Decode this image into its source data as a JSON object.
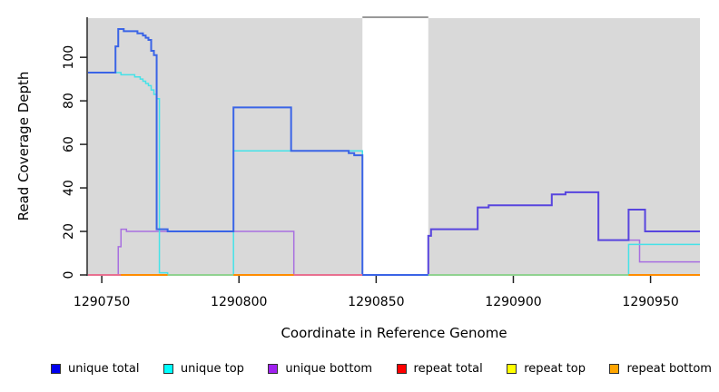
{
  "chart_data": {
    "type": "line",
    "step": true,
    "title": "",
    "xlabel": "Coordinate in Reference Genome",
    "ylabel": "Read Coverage Depth",
    "xlim": [
      1290745,
      1290968
    ],
    "ylim": [
      0,
      118
    ],
    "xticks": [
      1290750,
      1290800,
      1290850,
      1290900,
      1290950
    ],
    "yticks": [
      0,
      20,
      40,
      60,
      80,
      100
    ],
    "grid": false,
    "plot_background": "#D9D9D9",
    "gap_region": {
      "x0": 1290845,
      "x1": 1290869,
      "fill": "#FFFFFF",
      "top_border": "#999999"
    },
    "series": [
      {
        "name": "repeat total",
        "color": "#DD2233",
        "width": 1.2,
        "points": [
          [
            1290745,
            0
          ]
        ]
      },
      {
        "name": "repeat top",
        "color": "#F5E800",
        "width": 1.2,
        "points": [
          [
            1290745,
            0
          ]
        ]
      },
      {
        "name": "repeat bottom",
        "color": "#FF8C00",
        "width": 2,
        "points": [
          [
            1290745,
            0
          ]
        ]
      },
      {
        "name": "unique bottom",
        "color": "#A86FE0",
        "width": 1.5,
        "points": [
          [
            1290745,
            0
          ],
          [
            1290756,
            13
          ],
          [
            1290757,
            21
          ],
          [
            1290759,
            20
          ],
          [
            1290820,
            0
          ],
          [
            1290869,
            18
          ],
          [
            1290870,
            21
          ],
          [
            1290887,
            31
          ],
          [
            1290891,
            32
          ],
          [
            1290914,
            37
          ],
          [
            1290919,
            38
          ],
          [
            1290931,
            16
          ],
          [
            1290946,
            6
          ]
        ]
      },
      {
        "name": "unique top",
        "color": "#45E2E8",
        "width": 1.5,
        "points": [
          [
            1290745,
            93
          ],
          [
            1290757,
            92
          ],
          [
            1290762,
            91
          ],
          [
            1290764,
            90
          ],
          [
            1290765,
            89
          ],
          [
            1290766,
            88
          ],
          [
            1290767,
            87
          ],
          [
            1290768,
            85
          ],
          [
            1290769,
            83
          ],
          [
            1290770,
            81
          ],
          [
            1290771,
            1
          ],
          [
            1290774,
            0
          ],
          [
            1290798,
            57
          ],
          [
            1290845,
            0
          ],
          [
            1290942,
            14
          ]
        ]
      },
      {
        "name": "unique total (pre-gap)",
        "color": "#3A64E6",
        "width": 2,
        "end": 1290869,
        "points": [
          [
            1290745,
            93
          ],
          [
            1290755,
            105
          ],
          [
            1290756,
            113
          ],
          [
            1290758,
            112
          ],
          [
            1290763,
            111
          ],
          [
            1290765,
            110
          ],
          [
            1290766,
            109
          ],
          [
            1290767,
            108
          ],
          [
            1290768,
            103
          ],
          [
            1290769,
            101
          ],
          [
            1290770,
            21
          ],
          [
            1290774,
            20
          ],
          [
            1290798,
            77
          ],
          [
            1290819,
            57
          ],
          [
            1290840,
            56
          ],
          [
            1290842,
            55
          ],
          [
            1290845,
            0
          ]
        ]
      },
      {
        "name": "unique total (post-gap)",
        "color": "#5845DE",
        "width": 2,
        "start_v": 0,
        "points": [
          [
            1290869,
            18
          ],
          [
            1290870,
            21
          ],
          [
            1290887,
            31
          ],
          [
            1290891,
            32
          ],
          [
            1290914,
            37
          ],
          [
            1290919,
            38
          ],
          [
            1290931,
            16
          ],
          [
            1290942,
            30
          ],
          [
            1290948,
            20
          ]
        ]
      }
    ],
    "baseline_segments": [
      {
        "x0": 1290745,
        "x1": 1290757,
        "color": "#E87090"
      },
      {
        "x0": 1290757,
        "x1": 1290774,
        "color": "#FF8C00"
      },
      {
        "x0": 1290774,
        "x1": 1290798,
        "color": "#90D290"
      },
      {
        "x0": 1290798,
        "x1": 1290820,
        "color": "#FF8C00"
      },
      {
        "x0": 1290820,
        "x1": 1290845,
        "color": "#E87090"
      },
      {
        "x0": 1290845,
        "x1": 1290869,
        "color": "#3A64E6"
      },
      {
        "x0": 1290869,
        "x1": 1290942,
        "color": "#90D290"
      },
      {
        "x0": 1290942,
        "x1": 1290968,
        "color": "#FF8C00"
      }
    ],
    "legend": [
      {
        "label": "unique total",
        "color": "#0000EE"
      },
      {
        "label": "unique top",
        "color": "#00FFFF"
      },
      {
        "label": "unique bottom",
        "color": "#A020F0"
      },
      {
        "label": "repeat total",
        "color": "#FF0000"
      },
      {
        "label": "repeat top",
        "color": "#FFFF00"
      },
      {
        "label": "repeat bottom",
        "color": "#FFA500"
      }
    ]
  }
}
